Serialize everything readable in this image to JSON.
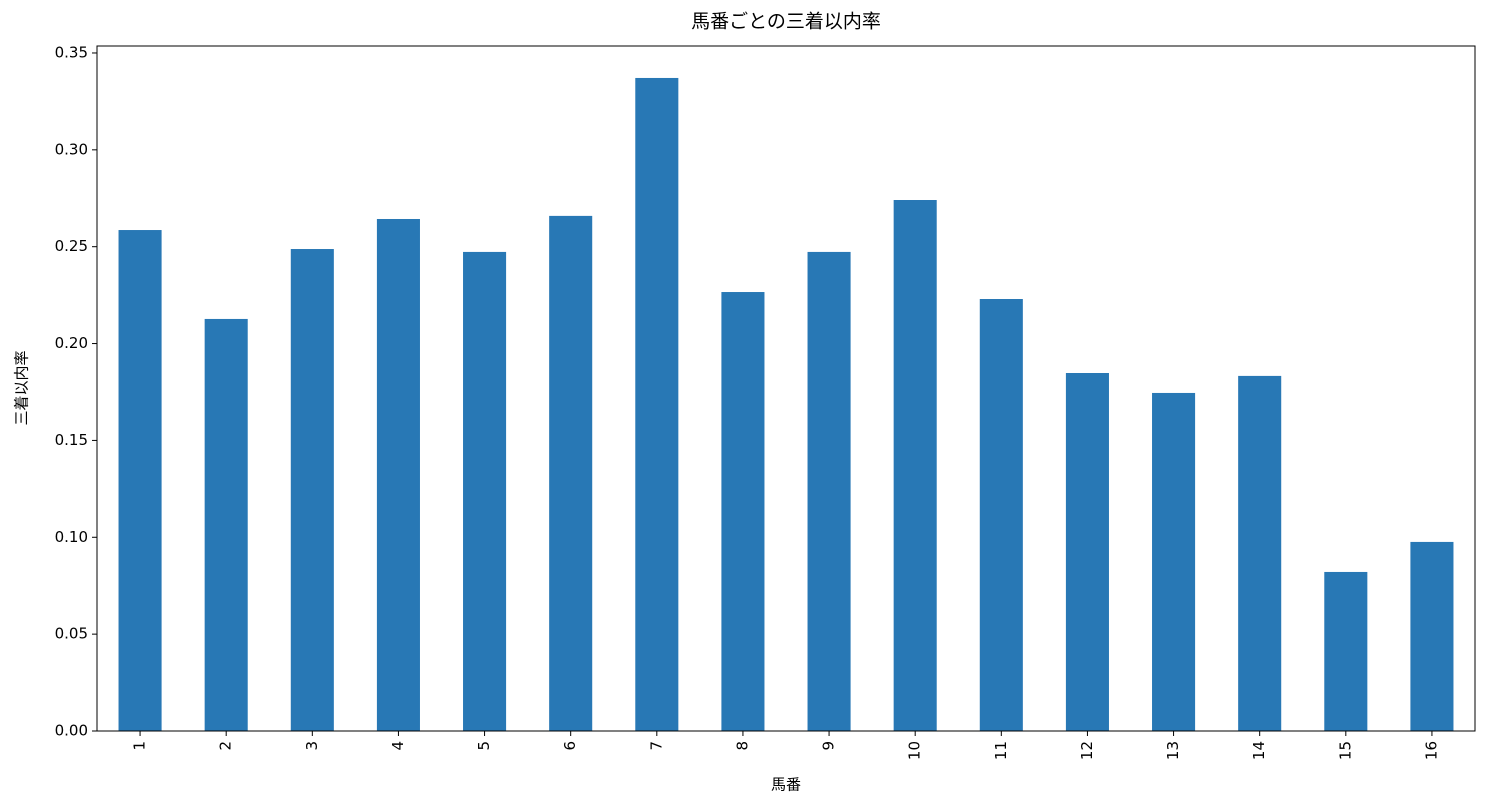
{
  "chart_data": {
    "type": "bar",
    "title": "馬番ごとの三着以内率",
    "x_label": "馬番",
    "y_label": "三着以内率",
    "categories": [
      "1",
      "2",
      "3",
      "4",
      "5",
      "6",
      "7",
      "8",
      "9",
      "10",
      "11",
      "12",
      "13",
      "14",
      "15",
      "16"
    ],
    "values": [
      0.2586,
      0.2127,
      0.2488,
      0.2643,
      0.2473,
      0.2659,
      0.3371,
      0.2266,
      0.2473,
      0.2741,
      0.223,
      0.1848,
      0.1745,
      0.1833,
      0.0821,
      0.0976
    ],
    "color": "#2878b5",
    "ylim": [
      0,
      0.3536
    ],
    "yticks": [
      {
        "value": 0,
        "label": "0.00"
      },
      {
        "value": 0.05,
        "label": "0.05"
      },
      {
        "value": 0.1,
        "label": "0.10"
      },
      {
        "value": 0.15,
        "label": "0.15"
      },
      {
        "value": 0.2,
        "label": "0.20"
      },
      {
        "value": 0.25,
        "label": "0.25"
      },
      {
        "value": 0.3,
        "label": "0.30"
      },
      {
        "value": 0.35,
        "label": "0.35"
      }
    ],
    "grid": false
  }
}
